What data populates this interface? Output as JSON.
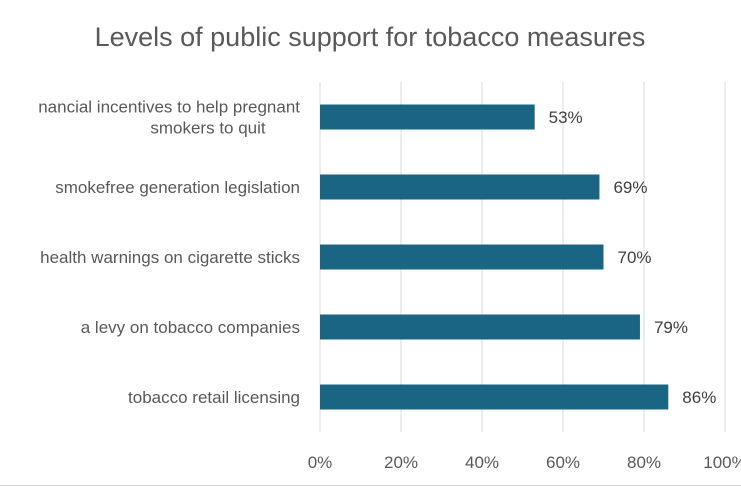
{
  "chart_data": {
    "type": "bar",
    "orientation": "horizontal",
    "title": "Levels of public support for tobacco measures",
    "xlabel": "",
    "ylabel": "",
    "categories": [
      [
        "nancial incentives to help pregnant",
        "smokers to quit"
      ],
      [
        "smokefree generation legislation"
      ],
      [
        "health warnings on cigarette sticks"
      ],
      [
        "a levy on tobacco companies"
      ],
      [
        "tobacco retail licensing"
      ]
    ],
    "values": [
      53,
      69,
      70,
      79,
      86
    ],
    "data_labels": [
      "53%",
      "69%",
      "70%",
      "79%",
      "86%"
    ],
    "xlim": [
      0,
      100
    ],
    "x_ticks": [
      0,
      20,
      40,
      60,
      80,
      100
    ],
    "x_tick_labels": [
      "0%",
      "20%",
      "40%",
      "60%",
      "80%",
      "100%"
    ],
    "grid": true,
    "legend": "none",
    "colors": {
      "bar": "#1b6584",
      "grid": "#d9d9d9",
      "text": "#595959"
    }
  }
}
